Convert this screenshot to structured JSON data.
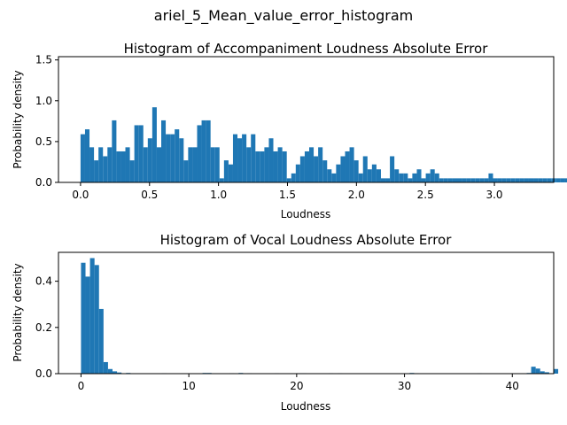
{
  "suptitle": "ariel_5_Mean_value_error_histogram",
  "chart_data": [
    {
      "type": "bar",
      "title": "Histogram of Accompaniment Loudness Absolute Error",
      "xlabel": "Loudness",
      "ylabel": "Probability density",
      "xlim": [
        -0.16,
        3.43
      ],
      "ylim": [
        0,
        1.54
      ],
      "xticks": [
        0.0,
        0.5,
        1.0,
        1.5,
        2.0,
        2.5,
        3.0
      ],
      "xtick_labels": [
        "0.0",
        "0.5",
        "1.0",
        "1.5",
        "2.0",
        "2.5",
        "3.0"
      ],
      "yticks": [
        0.0,
        0.5,
        1.0,
        1.5
      ],
      "ytick_labels": [
        "0.0",
        "0.5",
        "1.0",
        "1.5"
      ],
      "bin_start": 0.0,
      "bin_width": 0.0325,
      "values": [
        0.59,
        0.65,
        0.43,
        0.27,
        0.43,
        0.32,
        0.43,
        0.76,
        0.38,
        0.38,
        0.43,
        0.27,
        0.7,
        0.7,
        0.43,
        0.54,
        0.92,
        0.43,
        0.76,
        0.59,
        0.59,
        0.65,
        0.54,
        0.27,
        0.43,
        0.43,
        0.7,
        0.76,
        0.76,
        0.43,
        0.43,
        0.05,
        0.27,
        0.22,
        0.59,
        0.54,
        0.59,
        0.43,
        0.59,
        0.38,
        0.38,
        0.43,
        0.54,
        0.38,
        0.43,
        0.38,
        0.05,
        0.11,
        0.22,
        0.32,
        0.38,
        0.43,
        0.32,
        0.43,
        0.27,
        0.16,
        0.11,
        0.22,
        0.32,
        0.38,
        0.43,
        0.27,
        0.11,
        0.32,
        0.16,
        0.22,
        0.16,
        0.05,
        0.05,
        0.32,
        0.16,
        0.11,
        0.11,
        0.05,
        0.11,
        0.16,
        0.05,
        0.11,
        0.16,
        0.11,
        0.05,
        0.05,
        0.05,
        0.05,
        0.05,
        0.05,
        0.05,
        0.05,
        0.05,
        0.05,
        0.05,
        0.11,
        0.05,
        0.05,
        0.05,
        0.05,
        0.05,
        0.05,
        0.05,
        0.05,
        0.05,
        0.05,
        0.05,
        0.05,
        0.05,
        0.05,
        0.05,
        0.05,
        0.05,
        0.05,
        0.05,
        0.05,
        0.05,
        0.05,
        0.05,
        0.05,
        0.05,
        0.05,
        0.05,
        0.05
      ]
    },
    {
      "type": "bar",
      "title": "Histogram of Vocal Loudness Absolute Error",
      "xlabel": "Loudness",
      "ylabel": "Probability density",
      "xlim": [
        -2.09,
        43.84
      ],
      "ylim": [
        0,
        0.525
      ],
      "xticks": [
        0,
        10,
        20,
        30,
        40
      ],
      "xtick_labels": [
        "0",
        "10",
        "20",
        "30",
        "40"
      ],
      "yticks": [
        0.0,
        0.2,
        0.4
      ],
      "ytick_labels": [
        "0.0",
        "0.2",
        "0.4"
      ],
      "bin_start": 0.0,
      "bin_width": 0.4175,
      "values": [
        0.48,
        0.42,
        0.5,
        0.47,
        0.28,
        0.05,
        0.02,
        0.01,
        0.005,
        0,
        0.003,
        0,
        0,
        0,
        0,
        0,
        0,
        0,
        0.002,
        0,
        0,
        0,
        0,
        0,
        0,
        0,
        0,
        0.003,
        0.003,
        0,
        0,
        0,
        0,
        0.002,
        0,
        0.003,
        0,
        0.002,
        0,
        0,
        0,
        0,
        0,
        0.002,
        0,
        0,
        0,
        0,
        0.002,
        0.002,
        0,
        0,
        0,
        0,
        0,
        0.002,
        0,
        0.002,
        0,
        0,
        0,
        0,
        0,
        0,
        0,
        0,
        0,
        0,
        0,
        0,
        0,
        0,
        0.002,
        0.003,
        0.002,
        0,
        0,
        0,
        0,
        0,
        0,
        0,
        0,
        0,
        0,
        0,
        0,
        0,
        0.002,
        0.001,
        0,
        0.001,
        0,
        0,
        0,
        0,
        0,
        0,
        0,
        0.003,
        0.03,
        0.022,
        0.01,
        0.006,
        0,
        0.02
      ]
    }
  ]
}
